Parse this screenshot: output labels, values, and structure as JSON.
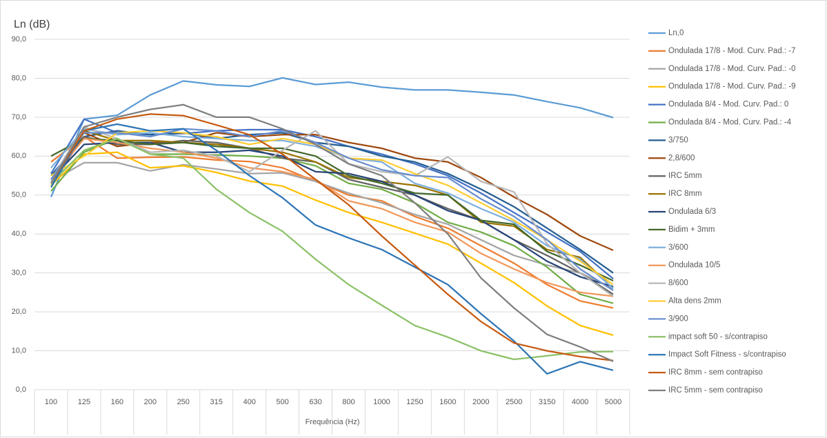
{
  "chart_data": {
    "type": "line",
    "y_label": "Ln (dB)",
    "x_label": "Frequência (Hz)",
    "categories": [
      "100",
      "125",
      "160",
      "200",
      "250",
      "315",
      "400",
      "500",
      "630",
      "800",
      "1000",
      "1250",
      "1600",
      "2000",
      "2500",
      "3150",
      "4000",
      "5000"
    ],
    "ylim": [
      0,
      90
    ],
    "yticks": [
      {
        "value": 0,
        "label": "0,0"
      },
      {
        "value": 10,
        "label": "10,0"
      },
      {
        "value": 20,
        "label": "20,0"
      },
      {
        "value": 30,
        "label": "30,0"
      },
      {
        "value": 40,
        "label": "40,0"
      },
      {
        "value": 50,
        "label": "50,0"
      },
      {
        "value": 60,
        "label": "60,0"
      },
      {
        "value": 70,
        "label": "70,0"
      },
      {
        "value": 80,
        "label": "80,0"
      },
      {
        "value": 90,
        "label": "90,0"
      }
    ],
    "grid": true,
    "legend": "right",
    "series": [
      {
        "name": "Ln,0",
        "color": "#5B9BD5",
        "values": [
          49.5,
          69.5,
          70.5,
          75.7,
          79.3,
          78.3,
          77.9,
          80.1,
          78.4,
          79.0,
          77.7,
          77.0,
          77.0,
          76.4,
          75.7,
          74.0,
          72.4,
          69.9
        ]
      },
      {
        "name": "Ondulada 17/8 - Mod. Curv. Pad.: -7",
        "color": "#ED7D31",
        "values": [
          58.5,
          65,
          59.5,
          59.7,
          59.8,
          59.0,
          58.6,
          57.0,
          53.5,
          50.0,
          48.5,
          44.5,
          41.5,
          37.0,
          32.5,
          27.0,
          22.8,
          21.0
        ]
      },
      {
        "name": "Ondulada 17/8 - Mod. Curv. Pad.: -0",
        "color": "#A5A5A5",
        "values": [
          53.5,
          58.3,
          58.3,
          56.2,
          57.8,
          56.7,
          55.5,
          55.7,
          53.5,
          50.5,
          48.0,
          45.0,
          42.5,
          38.5,
          34.5,
          32.0,
          30.0,
          26.0
        ]
      },
      {
        "name": "Ondulada 17/8 - Mod. Curv. Pad.: -9",
        "color": "#FFC000",
        "values": [
          52.5,
          60.5,
          61.0,
          57.0,
          57.5,
          55.8,
          53.6,
          52.3,
          48.7,
          45.5,
          43.0,
          40.2,
          37.4,
          32.5,
          27.5,
          21.5,
          16.5,
          14.0
        ]
      },
      {
        "name": "Ondulada 8/4 - Mod. Curv. Pad.: 0",
        "color": "#4472C4",
        "values": [
          55.5,
          69.5,
          66.0,
          65.5,
          65.8,
          66.5,
          66.8,
          66.8,
          65.0,
          62.5,
          60.5,
          58.0,
          55.0,
          50.5,
          45.5,
          40.5,
          35.5,
          28.5
        ]
      },
      {
        "name": "Ondulada 8/4 - Mod. Curv. Pad.: -4",
        "color": "#70AD47",
        "values": [
          51,
          61.0,
          64.5,
          60.5,
          60.5,
          60.3,
          60.0,
          59.5,
          57.5,
          53.0,
          51.5,
          48.0,
          43.0,
          40.5,
          37.0,
          31.5,
          24.5,
          22.2
        ]
      },
      {
        "name": "3/750",
        "color": "#255E91",
        "values": [
          55,
          65,
          66.5,
          65.5,
          66.0,
          64.5,
          65.5,
          66.0,
          63.5,
          62.5,
          60.0,
          58.5,
          55.5,
          51.5,
          47.0,
          41.5,
          36.0,
          30.0
        ]
      },
      {
        "name": "2,8/600",
        "color": "#9E480E",
        "values": [
          54,
          66,
          62.5,
          63.5,
          63.5,
          66,
          65,
          65.5,
          65.5,
          63.5,
          62,
          59.5,
          58.5,
          54.5,
          49.5,
          45,
          39.5,
          35.8
        ]
      },
      {
        "name": "IRC 5mm",
        "color": "#636363",
        "values": [
          53,
          65,
          63,
          63,
          64,
          63.5,
          62,
          59.5,
          58.5,
          54,
          52,
          50,
          46.5,
          43.5,
          38.5,
          34.5,
          30,
          24.5
        ]
      },
      {
        "name": "IRC 8mm",
        "color": "#997300",
        "values": [
          52,
          66.5,
          64,
          64,
          63.5,
          63,
          62,
          61,
          58.5,
          54.5,
          53.5,
          52.5,
          50,
          43,
          42,
          36,
          34,
          26
        ]
      },
      {
        "name": "Ondulada 6/3",
        "color": "#264478",
        "values": [
          54,
          63,
          63.5,
          63.5,
          61,
          61,
          61.5,
          60,
          56,
          55.5,
          53.5,
          50,
          46,
          43.5,
          38.5,
          33,
          29,
          26.5
        ]
      },
      {
        "name": "Bidim + 3mm",
        "color": "#43682B",
        "values": [
          60,
          64.5,
          64,
          63,
          63.5,
          62.5,
          62,
          62,
          60,
          55,
          53,
          50.5,
          50,
          43.5,
          42.5,
          35.5,
          32,
          28
        ]
      },
      {
        "name": "3/600",
        "color": "#7CAFDD",
        "values": [
          57,
          67,
          65.5,
          66,
          65,
          64.5,
          64,
          64,
          62.5,
          59.5,
          58.5,
          53,
          50.5,
          46.5,
          43,
          37,
          33.5,
          26
        ]
      },
      {
        "name": "Ondulada 10/5",
        "color": "#F1975A",
        "values": [
          54,
          64.5,
          63.5,
          62,
          61,
          59.5,
          57,
          56,
          54,
          48.5,
          46.5,
          43,
          40.5,
          35,
          31,
          27.5,
          25,
          24
        ]
      },
      {
        "name": "8/600",
        "color": "#B7B7B7",
        "values": [
          54,
          67.5,
          64.5,
          61,
          61.5,
          60,
          56,
          61.5,
          66.5,
          58,
          56,
          55,
          59.8,
          53.5,
          50.8,
          37.5,
          30,
          24
        ]
      },
      {
        "name": "Alta dens 2mm",
        "color": "#FFCD33",
        "values": [
          55,
          60,
          66,
          66.5,
          66,
          65,
          63,
          64.5,
          63,
          59.5,
          59,
          55.5,
          52.5,
          48,
          43.5,
          38.5,
          33,
          27
        ]
      },
      {
        "name": "3/900",
        "color": "#698ED0",
        "values": [
          54,
          66,
          66,
          65,
          67,
          66.5,
          65,
          66.5,
          63.5,
          59.5,
          56.5,
          55,
          54.5,
          49,
          44.5,
          38.5,
          31,
          25.5
        ]
      },
      {
        "name": "impact soft 50 - s/contrapiso",
        "color": "#8CC168",
        "values": [
          53,
          61.5,
          64.5,
          60.5,
          59.5,
          51.5,
          45.5,
          40.7,
          33.5,
          27,
          21.7,
          16.5,
          13.5,
          10,
          7.8,
          8.7,
          9.7,
          9.8
        ]
      },
      {
        "name": "Impact Soft Fitness - s/contrapiso",
        "color": "#2E75B6",
        "values": [
          52,
          66.5,
          68.2,
          66.5,
          67,
          61.5,
          55,
          49.3,
          42.3,
          39,
          36,
          31.5,
          27,
          19.5,
          12.5,
          4.1,
          7.2,
          5.0
        ]
      },
      {
        "name": "IRC 8mm - sem contrapiso",
        "color": "#C55A11",
        "values": [
          53,
          66.5,
          69.5,
          70.8,
          70.4,
          68,
          65.5,
          60.5,
          54,
          47.5,
          39.5,
          32,
          24.5,
          17.5,
          12,
          10,
          8.5,
          7.5
        ]
      },
      {
        "name": "IRC 5mm - sem contrapiso",
        "color": "#7F7F7F",
        "values": [
          53,
          67.5,
          70,
          72,
          73.2,
          70,
          70,
          67,
          63,
          58,
          55,
          48,
          40,
          28.7,
          21,
          14.2,
          11,
          7.3
        ]
      }
    ]
  }
}
